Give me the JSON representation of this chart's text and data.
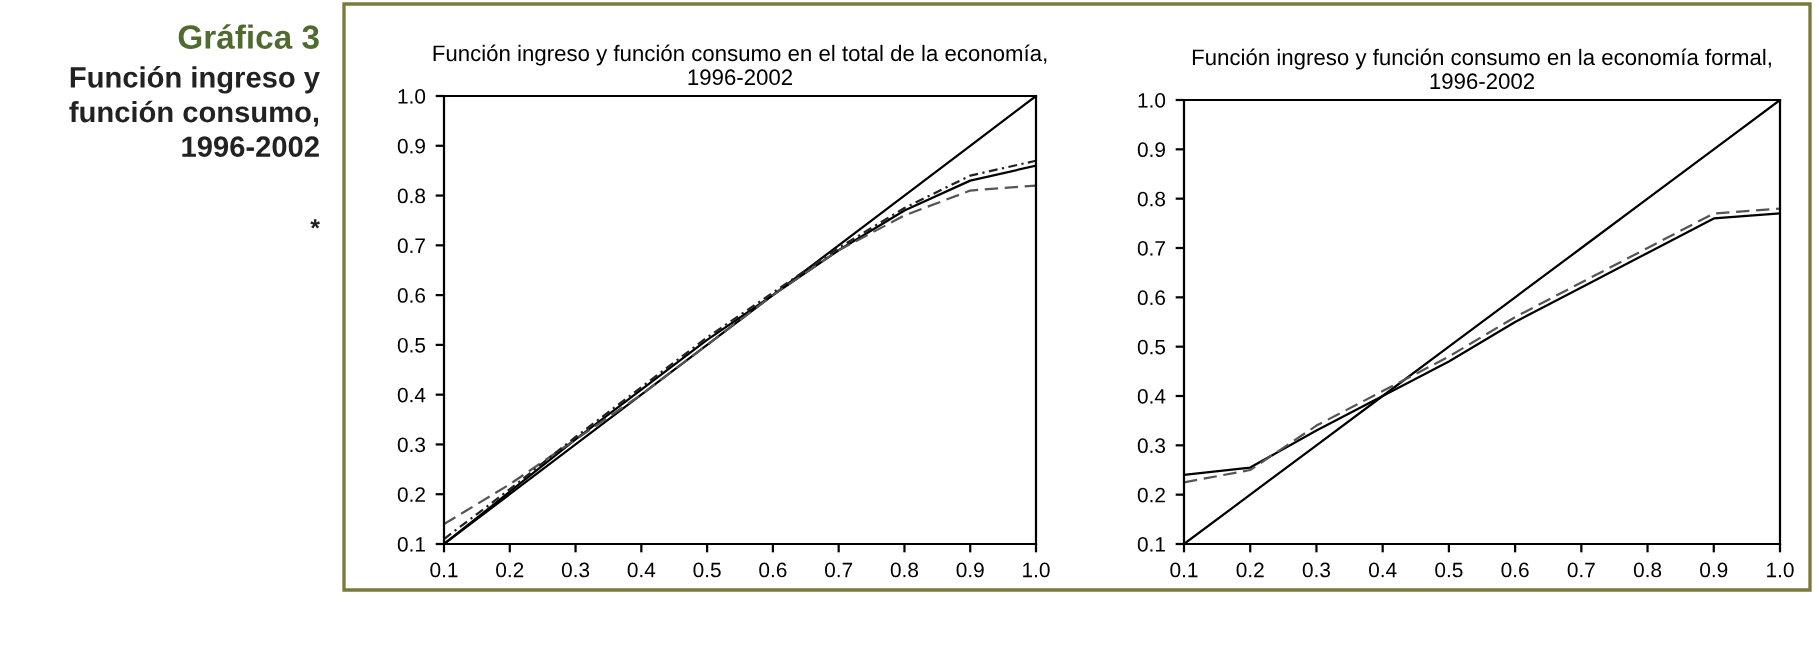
{
  "chart_data": [
    {
      "type": "line",
      "title": "Función ingreso y función consumo en el total de la economía,\n1996-2002",
      "annotations": [
        "Gráfica 3",
        "Función ingreso y\nfunción consumo,\n1996-2002",
        "*"
      ],
      "x": [
        0.1,
        0.2,
        0.3,
        0.4,
        0.5,
        0.6,
        0.7,
        0.8,
        0.9,
        1.0
      ],
      "series": [
        {
          "color": "#000000",
          "line_style": "solid",
          "values": [
            0.1,
            0.2,
            0.3,
            0.4,
            0.5,
            0.6,
            0.7,
            0.8,
            0.9,
            1.0
          ]
        },
        {
          "color": "#000000",
          "line_style": "solid",
          "values": [
            0.1,
            0.205,
            0.31,
            0.41,
            0.51,
            0.6,
            0.69,
            0.77,
            0.83,
            0.86
          ]
        },
        {
          "color": "#555555",
          "line_style": "dashed",
          "values": [
            0.14,
            0.22,
            0.31,
            0.4,
            0.5,
            0.6,
            0.69,
            0.76,
            0.81,
            0.82
          ]
        },
        {
          "color": "#222222",
          "line_style": "dotted",
          "values": [
            0.11,
            0.21,
            0.315,
            0.415,
            0.515,
            0.605,
            0.695,
            0.775,
            0.84,
            0.87
          ]
        }
      ],
      "xlim": [
        0.1,
        1.0
      ],
      "ylim": [
        0.1,
        1.0
      ],
      "xticks": [
        {
          "value": 0.1,
          "label": "0.1"
        },
        {
          "value": 0.2,
          "label": "0.2"
        },
        {
          "value": 0.3,
          "label": "0.3"
        },
        {
          "value": 0.4,
          "label": "0.4"
        },
        {
          "value": 0.5,
          "label": "0.5"
        },
        {
          "value": 0.6,
          "label": "0.6"
        },
        {
          "value": 0.7,
          "label": "0.7"
        },
        {
          "value": 0.8,
          "label": "0.8"
        },
        {
          "value": 0.9,
          "label": "0.9"
        },
        {
          "value": 1.0,
          "label": "1.0"
        }
      ],
      "yticks": [
        {
          "value": 0.1,
          "label": "0.1"
        },
        {
          "value": 0.2,
          "label": "0.2"
        },
        {
          "value": 0.3,
          "label": "0.3"
        },
        {
          "value": 0.4,
          "label": "0.4"
        },
        {
          "value": 0.5,
          "label": "0.5"
        },
        {
          "value": 0.6,
          "label": "0.6"
        },
        {
          "value": 0.7,
          "label": "0.7"
        },
        {
          "value": 0.8,
          "label": "0.8"
        },
        {
          "value": 0.9,
          "label": "0.9"
        },
        {
          "value": 1.0,
          "label": "1.0"
        }
      ]
    },
    {
      "type": "line",
      "title": "Función ingreso y función consumo en la economía formal,\n1996-2002",
      "x": [
        0.1,
        0.2,
        0.3,
        0.4,
        0.5,
        0.6,
        0.7,
        0.8,
        0.9,
        1.0
      ],
      "series": [
        {
          "color": "#000000",
          "line_style": "solid",
          "values": [
            0.1,
            0.2,
            0.3,
            0.4,
            0.5,
            0.6,
            0.7,
            0.8,
            0.9,
            1.0
          ]
        },
        {
          "color": "#000000",
          "line_style": "solid",
          "values": [
            0.24,
            0.255,
            0.33,
            0.4,
            0.47,
            0.55,
            0.62,
            0.69,
            0.76,
            0.77
          ]
        },
        {
          "color": "#555555",
          "line_style": "dashed",
          "values": [
            0.225,
            0.25,
            0.34,
            0.41,
            0.48,
            0.56,
            0.63,
            0.7,
            0.77,
            0.78
          ]
        }
      ],
      "xlim": [
        0.1,
        1.0
      ],
      "ylim": [
        0.1,
        1.0
      ],
      "xticks": [
        {
          "value": 0.1,
          "label": "0.1"
        },
        {
          "value": 0.2,
          "label": "0.2"
        },
        {
          "value": 0.3,
          "label": "0.3"
        },
        {
          "value": 0.4,
          "label": "0.4"
        },
        {
          "value": 0.5,
          "label": "0.5"
        },
        {
          "value": 0.6,
          "label": "0.6"
        },
        {
          "value": 0.7,
          "label": "0.7"
        },
        {
          "value": 0.8,
          "label": "0.8"
        },
        {
          "value": 0.9,
          "label": "0.9"
        },
        {
          "value": 1.0,
          "label": "1.0"
        }
      ],
      "yticks": [
        {
          "value": 0.1,
          "label": "0.1"
        },
        {
          "value": 0.2,
          "label": "0.2"
        },
        {
          "value": 0.3,
          "label": "0.3"
        },
        {
          "value": 0.4,
          "label": "0.4"
        },
        {
          "value": 0.5,
          "label": "0.5"
        },
        {
          "value": 0.6,
          "label": "0.6"
        },
        {
          "value": 0.7,
          "label": "0.7"
        },
        {
          "value": 0.8,
          "label": "0.8"
        },
        {
          "value": 0.9,
          "label": "0.9"
        },
        {
          "value": 1.0,
          "label": "1.0"
        }
      ]
    }
  ]
}
